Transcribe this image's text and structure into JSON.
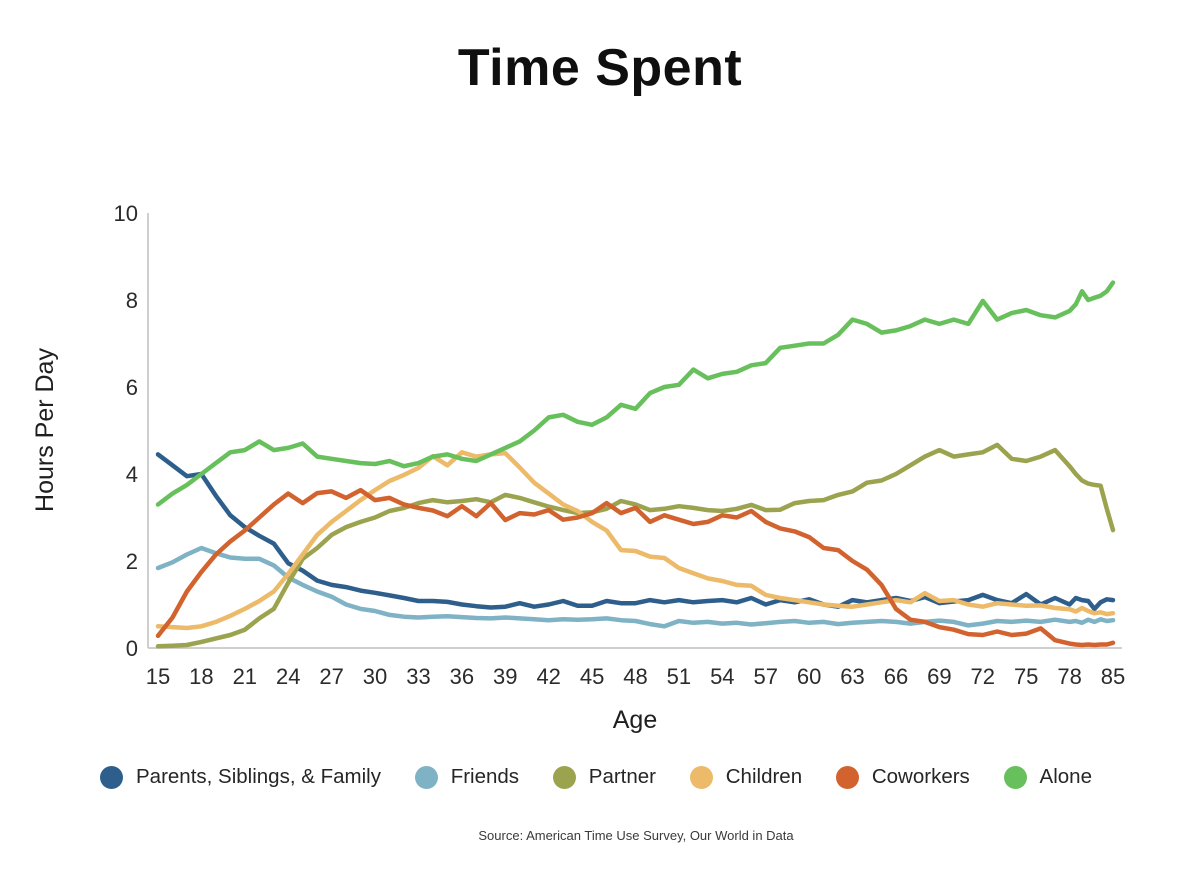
{
  "title": "Time Spent",
  "source": "Source: American Time Use Survey, Our World in Data",
  "colors": {
    "axis_line": "#c8c8c8",
    "tick_text": "#2b2b2b",
    "title_text": "#0f0f0f"
  },
  "chart_data": {
    "type": "line",
    "title": "Time Spent",
    "xlabel": "Age",
    "ylabel": "Hours Per Day",
    "ylim": [
      0,
      10
    ],
    "grid": false,
    "legend_position": "bottom",
    "x_ticks": [
      15,
      18,
      21,
      24,
      27,
      30,
      33,
      36,
      39,
      42,
      45,
      48,
      51,
      54,
      57,
      60,
      63,
      66,
      69,
      72,
      75,
      78,
      85
    ],
    "y_ticks": [
      0,
      2,
      4,
      6,
      8,
      10
    ],
    "axis_note": "ages 79-84 are compressed into the single interval between the 78 and 85 ticks",
    "ages": [
      15,
      16,
      17,
      18,
      19,
      20,
      21,
      22,
      23,
      24,
      25,
      26,
      27,
      28,
      29,
      30,
      31,
      32,
      33,
      34,
      35,
      36,
      37,
      38,
      39,
      40,
      41,
      42,
      43,
      44,
      45,
      46,
      47,
      48,
      49,
      50,
      51,
      52,
      53,
      54,
      55,
      56,
      57,
      58,
      59,
      60,
      61,
      62,
      63,
      64,
      65,
      66,
      67,
      68,
      69,
      70,
      71,
      72,
      73,
      74,
      75,
      76,
      77,
      78,
      79,
      80,
      81,
      82,
      83,
      84,
      85
    ],
    "series": [
      {
        "name": "Parents, Siblings, & Family",
        "color": "#2e5f8c",
        "values": [
          4.45,
          4.2,
          3.95,
          4.0,
          3.5,
          3.05,
          2.78,
          2.58,
          2.4,
          1.95,
          1.78,
          1.55,
          1.45,
          1.4,
          1.32,
          1.27,
          1.21,
          1.15,
          1.08,
          1.08,
          1.06,
          1.0,
          0.96,
          0.93,
          0.95,
          1.03,
          0.95,
          1.0,
          1.08,
          0.97,
          0.97,
          1.08,
          1.03,
          1.03,
          1.1,
          1.05,
          1.1,
          1.05,
          1.08,
          1.1,
          1.05,
          1.15,
          1.0,
          1.1,
          1.05,
          1.12,
          1.0,
          0.95,
          1.1,
          1.05,
          1.1,
          1.15,
          1.08,
          1.17,
          1.03,
          1.07,
          1.1,
          1.22,
          1.1,
          1.03,
          1.24,
          1.0,
          1.15,
          1.0,
          1.15,
          1.1,
          1.08,
          0.9,
          1.05,
          1.12,
          1.1
        ]
      },
      {
        "name": "Friends",
        "color": "#7fb2c5",
        "values": [
          1.84,
          1.97,
          2.15,
          2.3,
          2.18,
          2.08,
          2.05,
          2.05,
          1.9,
          1.62,
          1.45,
          1.3,
          1.18,
          1.0,
          0.9,
          0.85,
          0.76,
          0.72,
          0.7,
          0.72,
          0.73,
          0.71,
          0.69,
          0.68,
          0.7,
          0.68,
          0.66,
          0.64,
          0.66,
          0.65,
          0.66,
          0.68,
          0.64,
          0.62,
          0.55,
          0.5,
          0.62,
          0.58,
          0.6,
          0.56,
          0.58,
          0.54,
          0.57,
          0.6,
          0.62,
          0.58,
          0.6,
          0.55,
          0.58,
          0.6,
          0.62,
          0.6,
          0.56,
          0.6,
          0.63,
          0.6,
          0.52,
          0.56,
          0.62,
          0.6,
          0.63,
          0.6,
          0.65,
          0.6,
          0.62,
          0.58,
          0.65,
          0.6,
          0.66,
          0.62,
          0.64
        ]
      },
      {
        "name": "Partner",
        "color": "#9ca34f",
        "values": [
          0.04,
          0.05,
          0.07,
          0.14,
          0.22,
          0.3,
          0.42,
          0.68,
          0.9,
          1.5,
          2.05,
          2.3,
          2.6,
          2.78,
          2.9,
          3.0,
          3.15,
          3.22,
          3.33,
          3.4,
          3.35,
          3.38,
          3.42,
          3.35,
          3.52,
          3.45,
          3.35,
          3.25,
          3.17,
          3.1,
          3.12,
          3.2,
          3.38,
          3.3,
          3.17,
          3.2,
          3.26,
          3.22,
          3.17,
          3.15,
          3.2,
          3.29,
          3.17,
          3.18,
          3.33,
          3.38,
          3.4,
          3.52,
          3.6,
          3.8,
          3.85,
          4.0,
          4.2,
          4.4,
          4.55,
          4.4,
          4.45,
          4.5,
          4.67,
          4.35,
          4.3,
          4.4,
          4.55,
          4.18,
          4.0,
          3.85,
          3.78,
          3.75,
          3.73,
          3.2,
          2.71
        ]
      },
      {
        "name": "Children",
        "color": "#ecba68",
        "values": [
          0.5,
          0.48,
          0.46,
          0.5,
          0.6,
          0.74,
          0.9,
          1.08,
          1.3,
          1.7,
          2.15,
          2.6,
          2.9,
          3.15,
          3.4,
          3.63,
          3.84,
          3.98,
          4.14,
          4.41,
          4.2,
          4.5,
          4.4,
          4.45,
          4.48,
          4.15,
          3.8,
          3.55,
          3.3,
          3.15,
          2.9,
          2.7,
          2.25,
          2.23,
          2.1,
          2.07,
          1.84,
          1.72,
          1.6,
          1.54,
          1.45,
          1.43,
          1.22,
          1.15,
          1.1,
          1.05,
          1.0,
          0.97,
          0.95,
          1.0,
          1.05,
          1.1,
          1.05,
          1.26,
          1.08,
          1.1,
          1.0,
          0.95,
          1.03,
          1.0,
          0.97,
          0.98,
          0.92,
          0.89,
          0.84,
          0.92,
          0.85,
          0.8,
          0.82,
          0.78,
          0.8
        ]
      },
      {
        "name": "Coworkers",
        "color": "#d2622e",
        "values": [
          0.28,
          0.7,
          1.3,
          1.75,
          2.15,
          2.45,
          2.7,
          3.0,
          3.3,
          3.55,
          3.33,
          3.56,
          3.6,
          3.45,
          3.63,
          3.4,
          3.45,
          3.3,
          3.22,
          3.16,
          3.03,
          3.26,
          3.03,
          3.33,
          2.94,
          3.1,
          3.07,
          3.17,
          2.95,
          3.0,
          3.1,
          3.33,
          3.1,
          3.22,
          2.9,
          3.05,
          2.95,
          2.85,
          2.9,
          3.05,
          3.0,
          3.15,
          2.9,
          2.75,
          2.68,
          2.55,
          2.3,
          2.25,
          2.0,
          1.8,
          1.45,
          0.9,
          0.65,
          0.6,
          0.48,
          0.42,
          0.32,
          0.3,
          0.38,
          0.3,
          0.33,
          0.45,
          0.18,
          0.1,
          0.08,
          0.07,
          0.08,
          0.07,
          0.08,
          0.08,
          0.12
        ]
      },
      {
        "name": "Alone",
        "color": "#68c05c",
        "values": [
          3.3,
          3.55,
          3.75,
          4.0,
          4.25,
          4.5,
          4.55,
          4.75,
          4.55,
          4.6,
          4.7,
          4.4,
          4.35,
          4.3,
          4.25,
          4.23,
          4.3,
          4.18,
          4.25,
          4.4,
          4.45,
          4.35,
          4.3,
          4.45,
          4.6,
          4.75,
          5.0,
          5.3,
          5.36,
          5.2,
          5.13,
          5.3,
          5.59,
          5.5,
          5.86,
          6.0,
          6.05,
          6.4,
          6.2,
          6.3,
          6.35,
          6.5,
          6.55,
          6.9,
          6.95,
          7.0,
          7.0,
          7.2,
          7.55,
          7.45,
          7.25,
          7.3,
          7.4,
          7.55,
          7.45,
          7.55,
          7.45,
          7.98,
          7.55,
          7.7,
          7.77,
          7.65,
          7.6,
          7.75,
          7.9,
          8.2,
          8.0,
          8.05,
          8.1,
          8.2,
          8.4
        ]
      }
    ]
  }
}
